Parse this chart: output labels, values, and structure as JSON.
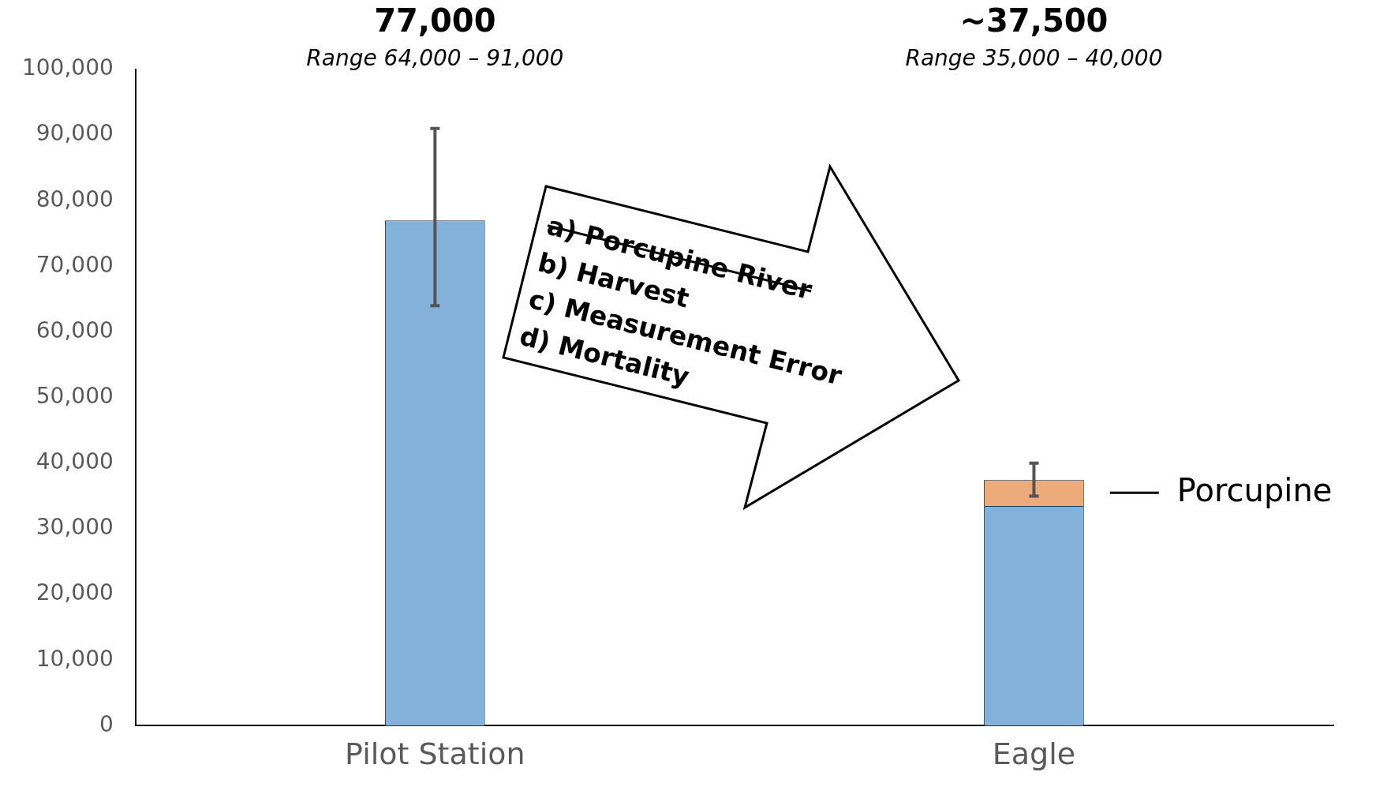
{
  "chart_data": {
    "type": "bar",
    "categories": [
      "Pilot Station",
      "Eagle"
    ],
    "stacked": true,
    "legend": false,
    "grid": false,
    "ylim": [
      0,
      100000
    ],
    "yticks": [
      {
        "value": 0,
        "label": "0"
      },
      {
        "value": 10000,
        "label": "10,000"
      },
      {
        "value": 20000,
        "label": "20,000"
      },
      {
        "value": 30000,
        "label": "30,000"
      },
      {
        "value": 40000,
        "label": "40,000"
      },
      {
        "value": 50000,
        "label": "50,000"
      },
      {
        "value": 60000,
        "label": "60,000"
      },
      {
        "value": 70000,
        "label": "70,000"
      },
      {
        "value": 80000,
        "label": "80,000"
      },
      {
        "value": 90000,
        "label": "90,000"
      },
      {
        "value": 100000,
        "label": "100,000"
      }
    ],
    "series": [
      {
        "color": "#83b1da",
        "values": [
          77000,
          33500
        ],
        "errors": [
          [
            64000,
            91000
          ],
          null
        ]
      },
      {
        "name": "Porcupine",
        "color": "#edaa7a",
        "values": [
          null,
          4000
        ],
        "errors": [
          null,
          [
            35000,
            40000
          ]
        ]
      }
    ],
    "annotations": [
      "77,000",
      "Range 64,000 – 91,000",
      "~37,500",
      "Range 35,000 – 40,000",
      "a)  Porcupine River",
      "b)  Harvest",
      "c)  Measurement Error",
      "d)  Mortality"
    ]
  }
}
